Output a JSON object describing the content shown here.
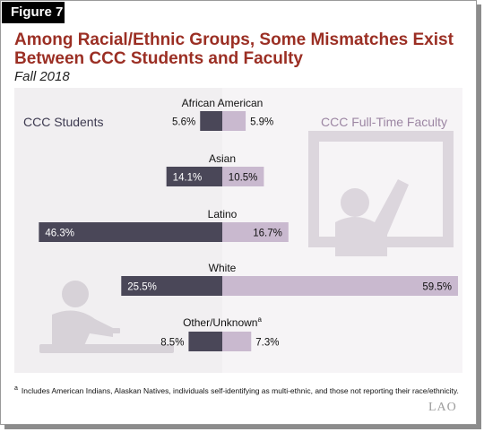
{
  "figure_label": "Figure 7",
  "title": "Among Racial/Ethnic Groups, Some Mismatches Exist Between CCC Students and Faculty",
  "subtitle": "Fall 2018",
  "footnote": {
    "marker": "a",
    "text": "Includes American Indians, Alaskan Natives, individuals self-identifying as multi-ethnic, and those not reporting their race/ethnicity."
  },
  "logo_text": "LAO",
  "chart_data": {
    "type": "bar",
    "orientation": "horizontal-diverging",
    "categories": [
      "African American",
      "Asian",
      "Latino",
      "White",
      "Other/Unknown"
    ],
    "category_superscripts": [
      "",
      "",
      "",
      "",
      "a"
    ],
    "series": [
      {
        "name": "CCC Students",
        "values": [
          5.6,
          14.1,
          46.3,
          25.5,
          8.5
        ],
        "labels": [
          "5.6%",
          "14.1%",
          "46.3%",
          "25.5%",
          "8.5%"
        ],
        "color": "#4a4758"
      },
      {
        "name": "CCC Full-Time Faculty",
        "values": [
          5.9,
          10.5,
          16.7,
          59.5,
          7.3
        ],
        "labels": [
          "5.9%",
          "10.5%",
          "16.7%",
          "59.5%",
          "7.3%"
        ],
        "color": "#c9b9cf"
      }
    ],
    "unit": "%",
    "label_colors": {
      "students": "#3d3a50",
      "faculty": "#9c86a3"
    }
  }
}
